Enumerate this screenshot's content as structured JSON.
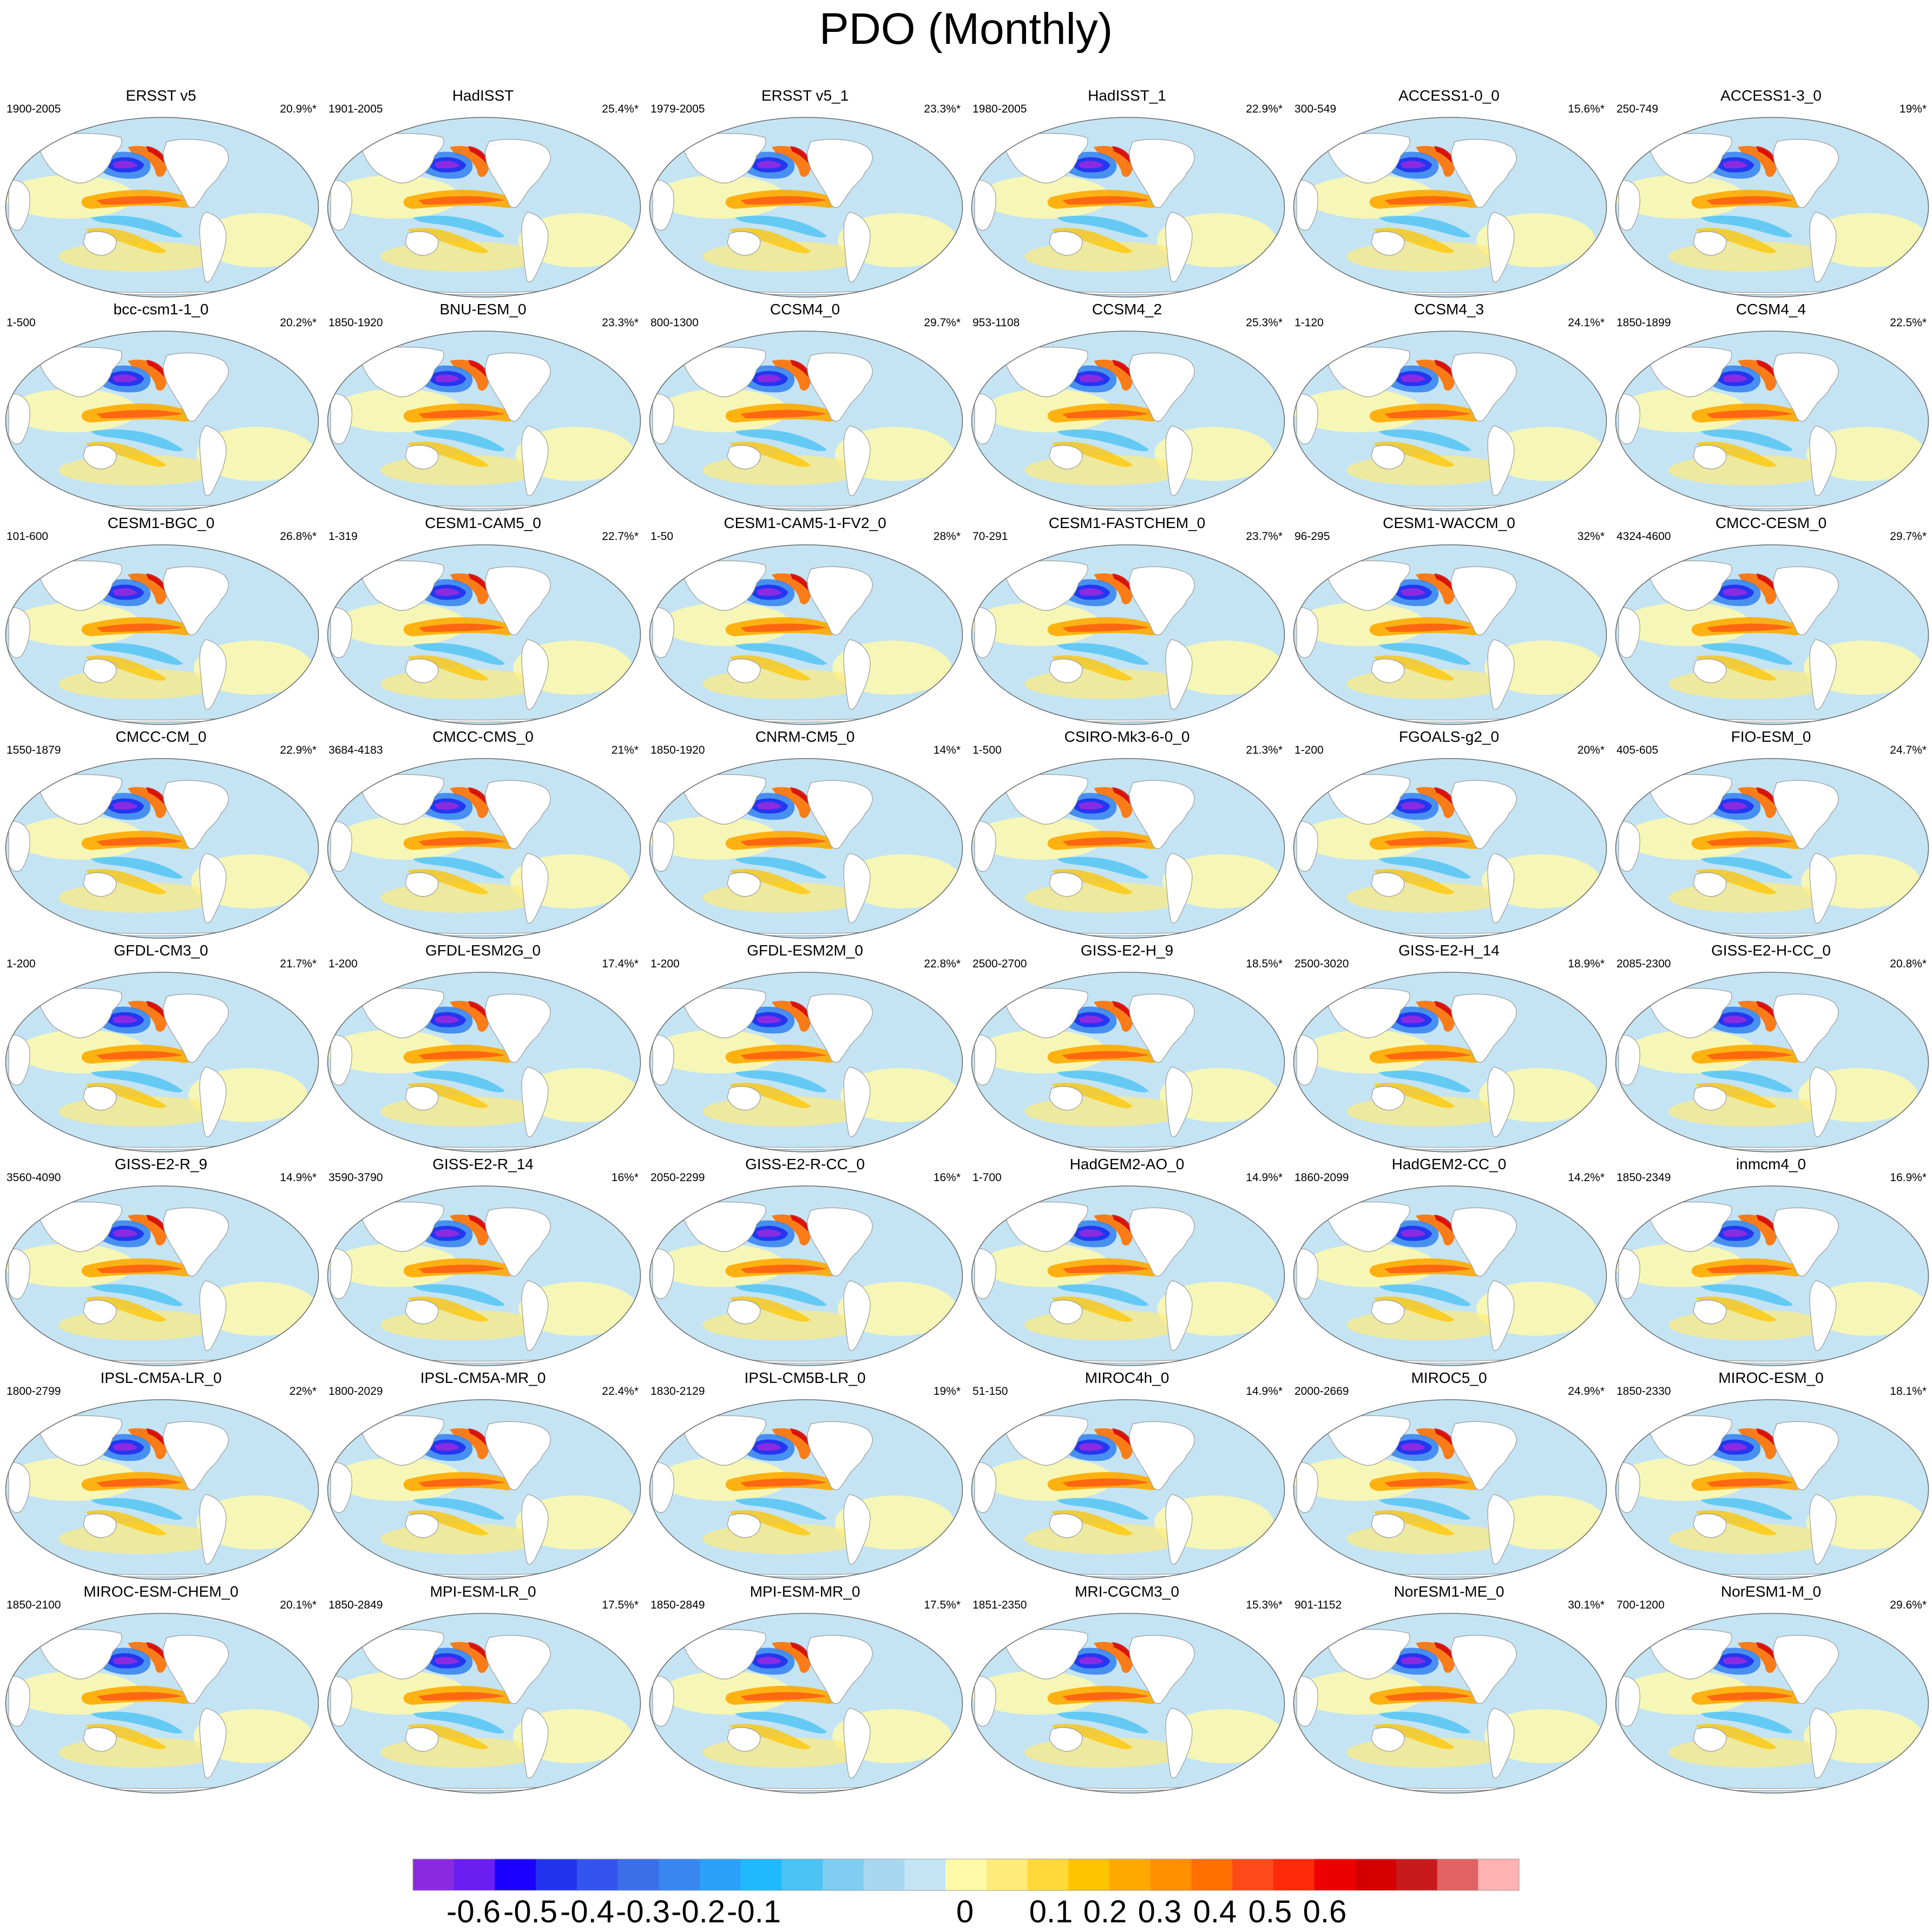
{
  "title": "PDO (Monthly)",
  "panels": [
    {
      "name": "ERSST v5",
      "years": "1900-2005",
      "variance": "20.9%*"
    },
    {
      "name": "HadISST",
      "years": "1901-2005",
      "variance": "25.4%*"
    },
    {
      "name": "ERSST v5_1",
      "years": "1979-2005",
      "variance": "23.3%*"
    },
    {
      "name": "HadISST_1",
      "years": "1980-2005",
      "variance": "22.9%*"
    },
    {
      "name": "ACCESS1-0_0",
      "years": "300-549",
      "variance": "15.6%*"
    },
    {
      "name": "ACCESS1-3_0",
      "years": "250-749",
      "variance": "19%*"
    },
    {
      "name": "bcc-csm1-1_0",
      "years": "1-500",
      "variance": "20.2%*"
    },
    {
      "name": "BNU-ESM_0",
      "years": "1850-1920",
      "variance": "23.3%*"
    },
    {
      "name": "CCSM4_0",
      "years": "800-1300",
      "variance": "29.7%*"
    },
    {
      "name": "CCSM4_2",
      "years": "953-1108",
      "variance": "25.3%*"
    },
    {
      "name": "CCSM4_3",
      "years": "1-120",
      "variance": "24.1%*"
    },
    {
      "name": "CCSM4_4",
      "years": "1850-1899",
      "variance": "22.5%*"
    },
    {
      "name": "CESM1-BGC_0",
      "years": "101-600",
      "variance": "26.8%*"
    },
    {
      "name": "CESM1-CAM5_0",
      "years": "1-319",
      "variance": "22.7%*"
    },
    {
      "name": "CESM1-CAM5-1-FV2_0",
      "years": "1-50",
      "variance": "28%*"
    },
    {
      "name": "CESM1-FASTCHEM_0",
      "years": "70-291",
      "variance": "23.7%*"
    },
    {
      "name": "CESM1-WACCM_0",
      "years": "96-295",
      "variance": "32%*"
    },
    {
      "name": "CMCC-CESM_0",
      "years": "4324-4600",
      "variance": "29.7%*"
    },
    {
      "name": "CMCC-CM_0",
      "years": "1550-1879",
      "variance": "22.9%*"
    },
    {
      "name": "CMCC-CMS_0",
      "years": "3684-4183",
      "variance": "21%*"
    },
    {
      "name": "CNRM-CM5_0",
      "years": "1850-1920",
      "variance": "14%*"
    },
    {
      "name": "CSIRO-Mk3-6-0_0",
      "years": "1-500",
      "variance": "21.3%*"
    },
    {
      "name": "FGOALS-g2_0",
      "years": "1-200",
      "variance": "20%*"
    },
    {
      "name": "FIO-ESM_0",
      "years": "405-605",
      "variance": "24.7%*"
    },
    {
      "name": "GFDL-CM3_0",
      "years": "1-200",
      "variance": "21.7%*"
    },
    {
      "name": "GFDL-ESM2G_0",
      "years": "1-200",
      "variance": "17.4%*"
    },
    {
      "name": "GFDL-ESM2M_0",
      "years": "1-200",
      "variance": "22.8%*"
    },
    {
      "name": "GISS-E2-H_9",
      "years": "2500-2700",
      "variance": "18.5%*"
    },
    {
      "name": "GISS-E2-H_14",
      "years": "2500-3020",
      "variance": "18.9%*"
    },
    {
      "name": "GISS-E2-H-CC_0",
      "years": "2085-2300",
      "variance": "20.8%*"
    },
    {
      "name": "GISS-E2-R_9",
      "years": "3560-4090",
      "variance": "14.9%*"
    },
    {
      "name": "GISS-E2-R_14",
      "years": "3590-3790",
      "variance": "16%*"
    },
    {
      "name": "GISS-E2-R-CC_0",
      "years": "2050-2299",
      "variance": "16%*"
    },
    {
      "name": "HadGEM2-AO_0",
      "years": "1-700",
      "variance": "14.9%*"
    },
    {
      "name": "HadGEM2-CC_0",
      "years": "1860-2099",
      "variance": "14.2%*"
    },
    {
      "name": "inmcm4_0",
      "years": "1850-2349",
      "variance": "16.9%*"
    },
    {
      "name": "IPSL-CM5A-LR_0",
      "years": "1800-2799",
      "variance": "22%*"
    },
    {
      "name": "IPSL-CM5A-MR_0",
      "years": "1800-2029",
      "variance": "22.4%*"
    },
    {
      "name": "IPSL-CM5B-LR_0",
      "years": "1830-2129",
      "variance": "19%*"
    },
    {
      "name": "MIROC4h_0",
      "years": "51-150",
      "variance": "14.9%*"
    },
    {
      "name": "MIROC5_0",
      "years": "2000-2669",
      "variance": "24.9%*"
    },
    {
      "name": "MIROC-ESM_0",
      "years": "1850-2330",
      "variance": "18.1%*"
    },
    {
      "name": "MIROC-ESM-CHEM_0",
      "years": "1850-2100",
      "variance": "20.1%*"
    },
    {
      "name": "MPI-ESM-LR_0",
      "years": "1850-2849",
      "variance": "17.5%*"
    },
    {
      "name": "MPI-ESM-MR_0",
      "years": "1850-2849",
      "variance": "17.5%*"
    },
    {
      "name": "MRI-CGCM3_0",
      "years": "1851-2350",
      "variance": "15.3%*"
    },
    {
      "name": "NorESM1-ME_0",
      "years": "901-1152",
      "variance": "30.1%*"
    },
    {
      "name": "NorESM1-M_0",
      "years": "700-1200",
      "variance": "29.6%*"
    }
  ],
  "colorbar": {
    "colors": [
      "#8a2be2",
      "#6a1ef0",
      "#1a00ff",
      "#2233ee",
      "#3355ee",
      "#3b6fe8",
      "#3a86f0",
      "#2aa0f8",
      "#1fbaff",
      "#4cc3f4",
      "#7fcdf0",
      "#a8d8f0",
      "#c4e4f4",
      "#fffaaa",
      "#ffeb7a",
      "#ffd93a",
      "#ffc400",
      "#ffaa00",
      "#ff9000",
      "#ff7000",
      "#ff4a1a",
      "#ff2a0a",
      "#ee0000",
      "#d40000",
      "#c81a1a",
      "#e06262",
      "#ffb3b3"
    ],
    "tick_labels": [
      "-0.6",
      "-0.5",
      "-0.4",
      "-0.3",
      "-0.2",
      "-0.1",
      "0",
      "0.1",
      "0.2",
      "0.3",
      "0.4",
      "0.5",
      "0.6"
    ]
  },
  "colors": {
    "ocean_neutral": "#c4e4f4",
    "land": "#ffffff",
    "coast": "#9a9a9a"
  }
}
